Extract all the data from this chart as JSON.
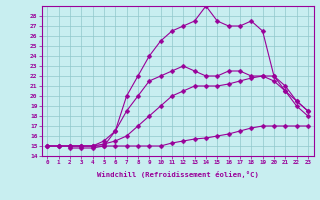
{
  "xlabel": "Windchill (Refroidissement éolien,°C)",
  "background_color": "#c8eef0",
  "line_color": "#990099",
  "xlim": [
    -0.5,
    23.5
  ],
  "ylim": [
    14,
    29
  ],
  "xticks": [
    0,
    1,
    2,
    3,
    4,
    5,
    6,
    7,
    8,
    9,
    10,
    11,
    12,
    13,
    14,
    15,
    16,
    17,
    18,
    19,
    20,
    21,
    22,
    23
  ],
  "yticks": [
    14,
    15,
    16,
    17,
    18,
    19,
    20,
    21,
    22,
    23,
    24,
    25,
    26,
    27,
    28
  ],
  "curve1_x": [
    0,
    1,
    2,
    3,
    4,
    5,
    6,
    7,
    8,
    9,
    10,
    11,
    12,
    13,
    14,
    15,
    16,
    17,
    18,
    19,
    20,
    21,
    22,
    23
  ],
  "curve1_y": [
    15,
    15,
    15,
    15,
    15,
    15,
    15,
    15,
    15,
    15,
    15,
    15.3,
    15.5,
    15.7,
    15.8,
    16,
    16.2,
    16.5,
    16.8,
    17,
    17,
    17,
    17,
    17
  ],
  "curve2_x": [
    0,
    1,
    2,
    3,
    4,
    5,
    6,
    7,
    8,
    9,
    10,
    11,
    12,
    13,
    14,
    15,
    16,
    17,
    18,
    19,
    20,
    21,
    22,
    23
  ],
  "curve2_y": [
    15,
    15,
    15,
    15,
    15,
    15.2,
    15.5,
    16,
    17,
    18,
    19,
    20,
    20.5,
    21,
    21,
    21,
    21.2,
    21.5,
    21.8,
    22,
    21.5,
    20.5,
    19,
    18
  ],
  "curve3_x": [
    0,
    1,
    2,
    3,
    4,
    5,
    6,
    7,
    8,
    9,
    10,
    11,
    12,
    13,
    14,
    15,
    16,
    17,
    18,
    19,
    20,
    21,
    22,
    23
  ],
  "curve3_y": [
    15,
    15,
    15,
    15,
    15,
    15.5,
    16.5,
    18.5,
    20,
    21.5,
    22,
    22.5,
    23,
    22.5,
    22,
    22,
    22.5,
    22.5,
    22,
    22,
    22,
    21,
    19.5,
    18.5
  ],
  "curve4_x": [
    2,
    3,
    4,
    5,
    6,
    7,
    8,
    9,
    10,
    11,
    12,
    13,
    14,
    15,
    16,
    17,
    18,
    19,
    20,
    21,
    22,
    23
  ],
  "curve4_y": [
    14.8,
    14.8,
    14.8,
    15,
    16.5,
    20,
    22,
    24,
    25.5,
    26.5,
    27,
    27.5,
    29,
    27.5,
    27,
    27,
    27.5,
    26.5,
    22,
    20.5,
    19.5,
    18.5
  ],
  "markersize": 2.5
}
